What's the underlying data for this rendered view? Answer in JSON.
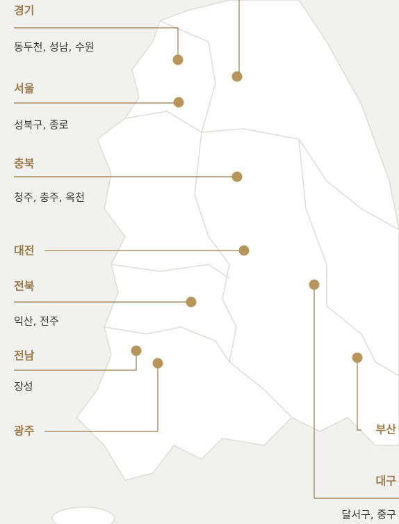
{
  "regions": [
    {
      "name": "경기",
      "detail": "동두천, 성남, 수원"
    },
    {
      "name": "서울",
      "detail": "성북구, 종로"
    },
    {
      "name": "충북",
      "detail": "청주, 충주, 옥천"
    },
    {
      "name": "대전"
    },
    {
      "name": "전북",
      "detail": "익산, 전주"
    },
    {
      "name": "전남",
      "detail": "장성"
    },
    {
      "name": "광주"
    },
    {
      "name": "부산"
    },
    {
      "name": "대구",
      "detail": "달서구, 중구"
    }
  ]
}
